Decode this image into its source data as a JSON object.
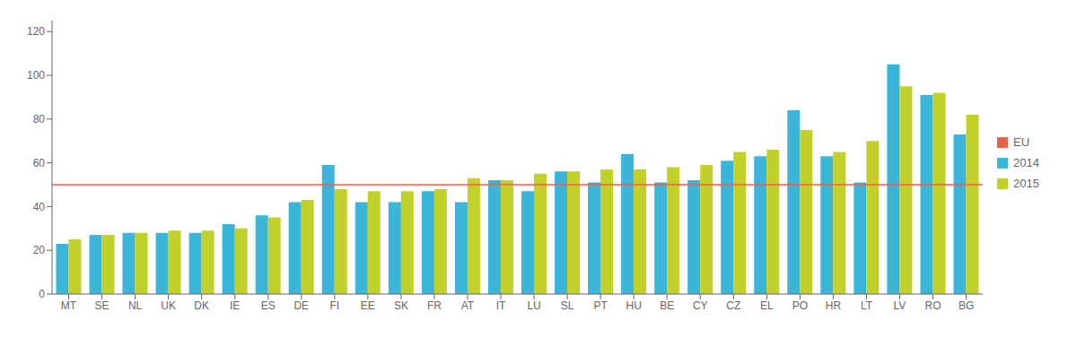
{
  "chart_data": {
    "type": "bar",
    "categories": [
      "MT",
      "SE",
      "NL",
      "UK",
      "DK",
      "IE",
      "ES",
      "DE",
      "FI",
      "EE",
      "SK",
      "FR",
      "AT",
      "IT",
      "LU",
      "SL",
      "PT",
      "HU",
      "BE",
      "CY",
      "CZ",
      "EL",
      "PO",
      "HR",
      "LT",
      "LV",
      "RO",
      "BG"
    ],
    "series": [
      {
        "name": "2014",
        "color": "#3BB5D8",
        "values": [
          23,
          27,
          28,
          28,
          28,
          32,
          36,
          42,
          59,
          42,
          42,
          47,
          42,
          52,
          47,
          56,
          51,
          64,
          51,
          52,
          61,
          63,
          84,
          63,
          51,
          105,
          91,
          73
        ]
      },
      {
        "name": "2015",
        "color": "#C2D12A",
        "values": [
          25,
          27,
          28,
          29,
          29,
          30,
          35,
          43,
          48,
          47,
          47,
          48,
          53,
          52,
          55,
          56,
          57,
          57,
          58,
          59,
          65,
          66,
          75,
          65,
          70,
          95,
          92,
          82
        ]
      }
    ],
    "reference_line": {
      "name": "EU",
      "value": 50,
      "color": "#E8624A"
    },
    "ylim": [
      0,
      125
    ],
    "yticks": [
      0,
      20,
      40,
      60,
      80,
      100,
      120
    ],
    "grid": false,
    "legend": "right"
  }
}
